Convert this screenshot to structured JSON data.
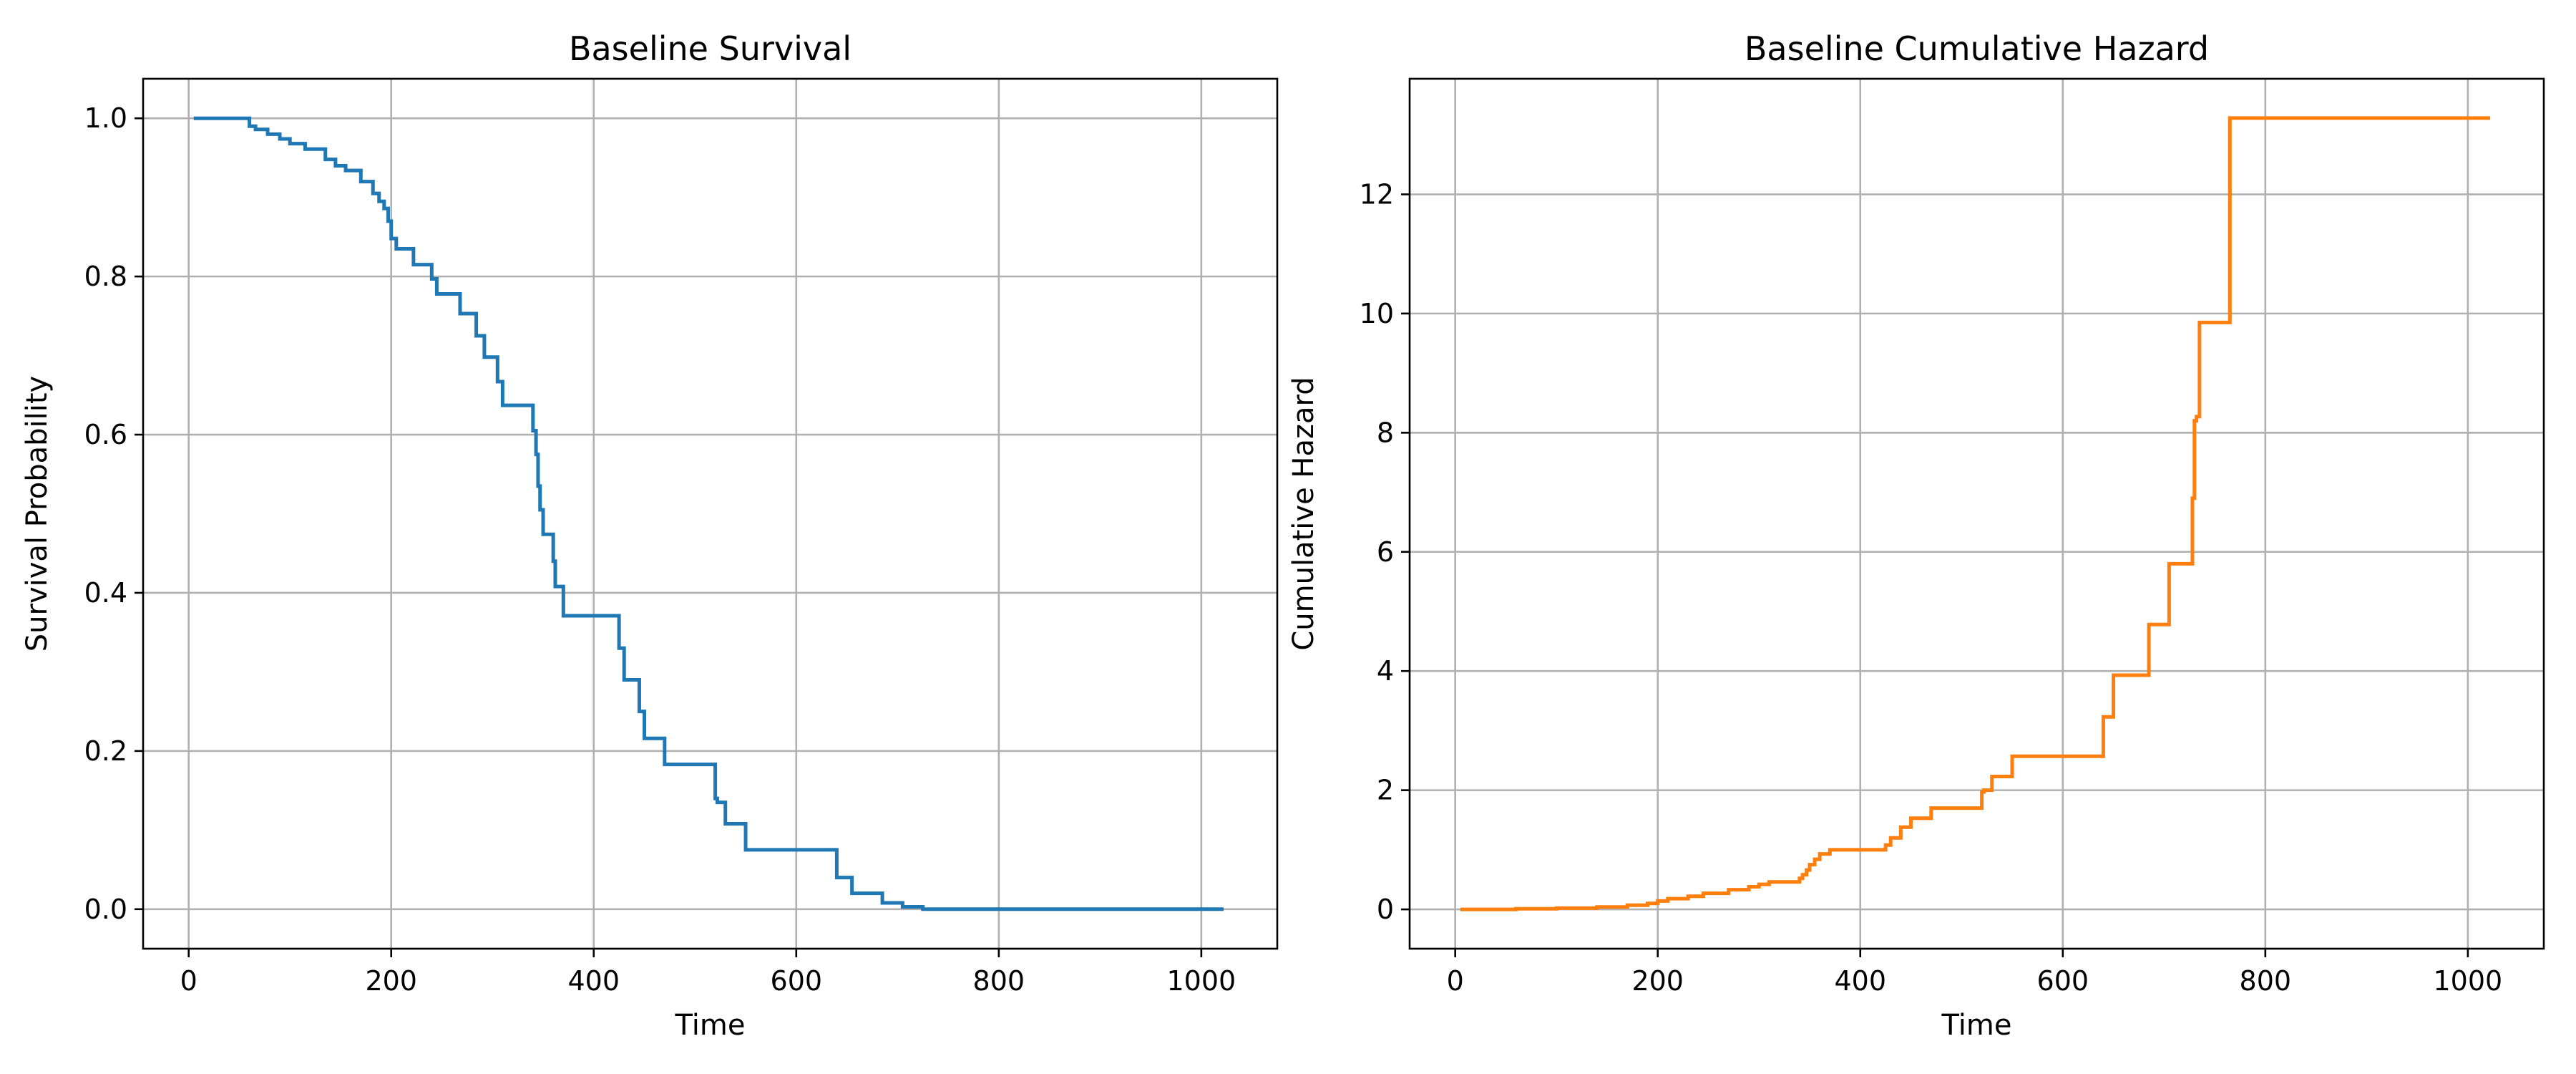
{
  "chart_data": [
    {
      "type": "line",
      "title": "Baseline Survival",
      "xlabel": "Time",
      "ylabel": "Survival Probability",
      "xlim": [
        -45,
        1075
      ],
      "ylim": [
        -0.05,
        1.05
      ],
      "xticks": [
        0,
        200,
        400,
        600,
        800,
        1000
      ],
      "yticks": [
        0.0,
        0.2,
        0.4,
        0.6,
        0.8,
        1.0
      ],
      "ytick_decimals": 1,
      "grid": true,
      "step": true,
      "color": "#1f77b4",
      "series": [
        {
          "x": [
            5,
            60,
            66,
            78,
            90,
            100,
            115,
            135,
            145,
            155,
            170,
            182,
            188,
            193,
            197,
            200,
            205,
            222,
            240,
            245,
            268,
            284,
            292,
            305,
            310,
            340,
            343,
            345,
            347,
            350,
            360,
            362,
            370,
            425,
            430,
            440,
            445,
            450,
            470,
            520,
            522,
            530,
            550,
            640,
            645,
            655,
            685,
            705,
            725,
            1022
          ],
          "y": [
            1.0,
            0.99,
            0.986,
            0.98,
            0.974,
            0.968,
            0.961,
            0.948,
            0.94,
            0.934,
            0.92,
            0.905,
            0.895,
            0.886,
            0.87,
            0.848,
            0.835,
            0.815,
            0.797,
            0.778,
            0.753,
            0.725,
            0.698,
            0.667,
            0.637,
            0.605,
            0.575,
            0.535,
            0.505,
            0.474,
            0.44,
            0.408,
            0.371,
            0.33,
            0.29,
            0.29,
            0.25,
            0.216,
            0.183,
            0.14,
            0.135,
            0.108,
            0.075,
            0.04,
            0.04,
            0.02,
            0.008,
            0.003,
            0.0,
            0.0
          ]
        }
      ]
    },
    {
      "type": "line",
      "title": "Baseline Cumulative Hazard",
      "xlabel": "Time",
      "ylabel": "Cumulative Hazard",
      "xlim": [
        -45,
        1075
      ],
      "ylim": [
        -0.66,
        13.94
      ],
      "xticks": [
        0,
        200,
        400,
        600,
        800,
        1000
      ],
      "yticks": [
        0,
        2,
        4,
        6,
        8,
        10,
        12
      ],
      "ytick_decimals": 0,
      "grid": true,
      "step": true,
      "color": "#ff7f0e",
      "series": [
        {
          "x": [
            5,
            60,
            100,
            140,
            170,
            190,
            200,
            210,
            230,
            245,
            270,
            290,
            300,
            310,
            340,
            343,
            347,
            350,
            355,
            360,
            370,
            425,
            430,
            440,
            450,
            470,
            520,
            522,
            530,
            550,
            640,
            650,
            685,
            705,
            728,
            730,
            732,
            735,
            765,
            1022
          ],
          "y": [
            0.0,
            0.01,
            0.02,
            0.04,
            0.07,
            0.1,
            0.14,
            0.18,
            0.22,
            0.27,
            0.33,
            0.38,
            0.42,
            0.46,
            0.52,
            0.58,
            0.66,
            0.75,
            0.84,
            0.93,
            1.0,
            1.08,
            1.2,
            1.38,
            1.53,
            1.7,
            1.97,
            2.0,
            2.23,
            2.57,
            3.23,
            3.93,
            4.78,
            5.8,
            6.9,
            8.2,
            8.27,
            9.85,
            13.28,
            13.28
          ]
        }
      ]
    }
  ]
}
